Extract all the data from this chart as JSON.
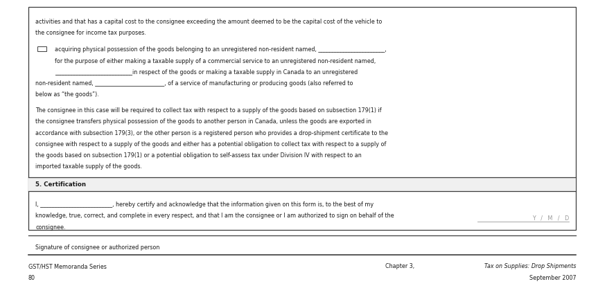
{
  "bg_color": "#ffffff",
  "border_color": "#3c3c3c",
  "text_color": "#1a1a1a",
  "gray_color": "#999999",
  "top_text_line1": "activities and that has a capital cost to the consignee exceeding the amount deemed to be the capital cost of the vehicle to",
  "top_text_line2": "the consignee for income tax purposes.",
  "bullet_line1": "acquiring physical possession of the goods belonging to an unregistered non-resident named, ________________________,",
  "bullet_line2": "for the purpose of either making a taxable supply of a commercial service to an unregistered non-resident named,",
  "bullet_line3": "____________________________in respect of the goods or making a taxable supply in Canada to an unregistered",
  "bullet_line4": "non-resident named, _________________________, of a service of manufacturing or producing goods (also referred to",
  "bullet_line5": "below as “the goods”).",
  "body_lines": [
    "The consignee in this case will be required to collect tax with respect to a supply of the goods based on subsection 179(1) if",
    "the consignee transfers physical possession of the goods to another person in Canada, unless the goods are exported in",
    "accordance with subsection 179(3), or the other person is a registered person who provides a drop-shipment certificate to the",
    "consignee with respect to a supply of the goods and either has a potential obligation to collect tax with respect to a supply of",
    "the goods based on subsection 179(1) or a potential obligation to self-assess tax under Division IV with respect to an",
    "imported taxable supply of the goods."
  ],
  "cert_header": "5. Certification",
  "cert_line1": "I, __________________________, hereby certify and acknowledge that the information given on this form is, to the best of my",
  "cert_line2": "knowledge, true, correct, and complete in every respect, and that I am the consignee or I am authorized to sign on behalf of the",
  "cert_line3": "consignee.",
  "sig_label": "Signature of consignee or authorized person",
  "date_label": "Y   /   M   /   D",
  "footer_left_line1": "GST/HST Memoranda Series",
  "footer_left_line2": "80",
  "footer_right_italic": "Tax on Supplies: Drop Shipments",
  "footer_right_normal": "Chapter 3, ",
  "footer_right_line2": "September 2007",
  "fs": 5.8,
  "fs_bold": 6.2,
  "lh": 0.038
}
